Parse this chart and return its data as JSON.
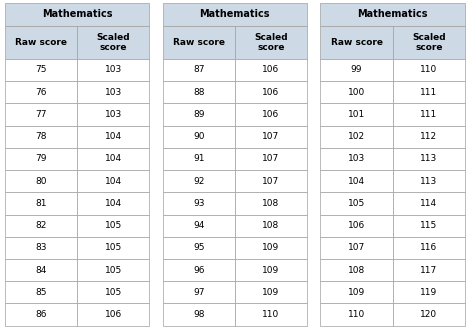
{
  "tables": [
    {
      "title": "Mathematics",
      "col1_header": "Raw score",
      "col2_header": "Scaled\nscore",
      "rows": [
        [
          75,
          103
        ],
        [
          76,
          103
        ],
        [
          77,
          103
        ],
        [
          78,
          104
        ],
        [
          79,
          104
        ],
        [
          80,
          104
        ],
        [
          81,
          104
        ],
        [
          82,
          105
        ],
        [
          83,
          105
        ],
        [
          84,
          105
        ],
        [
          85,
          105
        ],
        [
          86,
          106
        ]
      ]
    },
    {
      "title": "Mathematics",
      "col1_header": "Raw score",
      "col2_header": "Scaled\nscore",
      "rows": [
        [
          87,
          106
        ],
        [
          88,
          106
        ],
        [
          89,
          106
        ],
        [
          90,
          107
        ],
        [
          91,
          107
        ],
        [
          92,
          107
        ],
        [
          93,
          108
        ],
        [
          94,
          108
        ],
        [
          95,
          109
        ],
        [
          96,
          109
        ],
        [
          97,
          109
        ],
        [
          98,
          110
        ]
      ]
    },
    {
      "title": "Mathematics",
      "col1_header": "Raw score",
      "col2_header": "Scaled\nscore",
      "rows": [
        [
          99,
          110
        ],
        [
          100,
          111
        ],
        [
          101,
          111
        ],
        [
          102,
          112
        ],
        [
          103,
          113
        ],
        [
          104,
          113
        ],
        [
          105,
          114
        ],
        [
          106,
          115
        ],
        [
          107,
          116
        ],
        [
          108,
          117
        ],
        [
          109,
          119
        ],
        [
          110,
          120
        ]
      ]
    }
  ],
  "header_bg": "#cdd9e5",
  "title_bg": "#cdd9e5",
  "cell_bg": "#ffffff",
  "border_color": "#a0a0a0",
  "text_color": "#000000",
  "title_fontsize": 7.0,
  "header_fontsize": 6.5,
  "cell_fontsize": 6.5,
  "fig_width": 4.74,
  "fig_height": 3.29,
  "fig_dpi": 100
}
